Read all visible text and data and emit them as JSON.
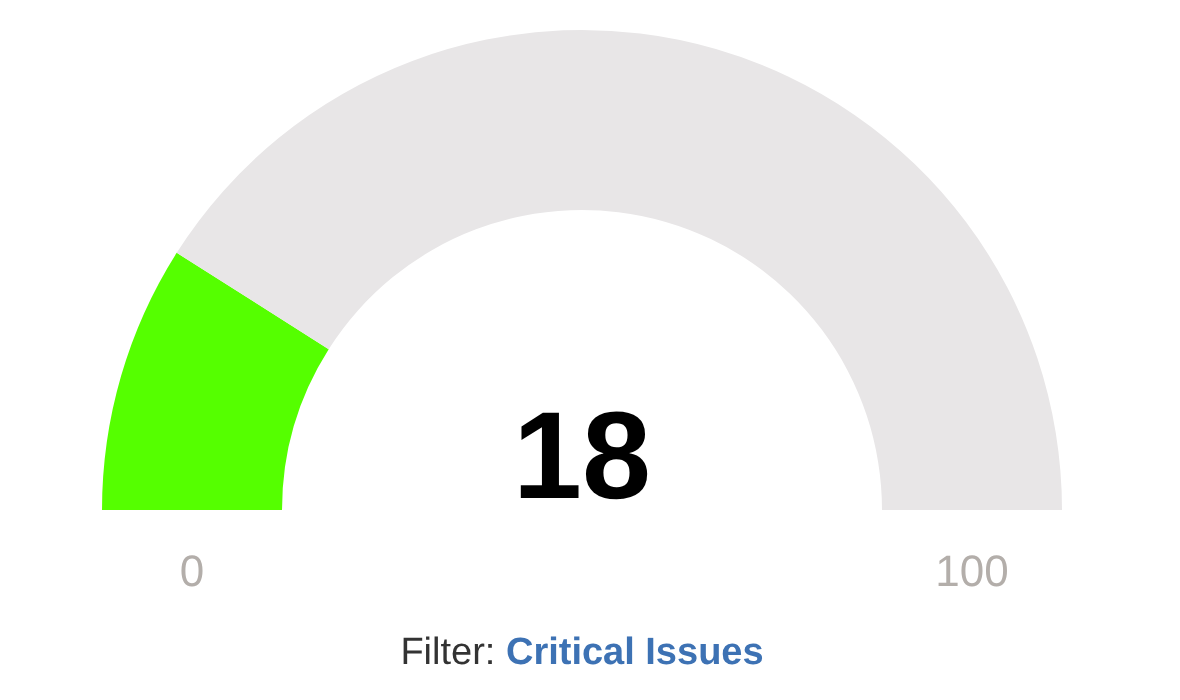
{
  "chart_data": {
    "type": "donut",
    "subtitle": "Filter: Critical Issues",
    "categories": [
      null,
      null
    ],
    "values": [
      18,
      82
    ],
    "colors": [
      "#55ff00",
      "#e8e6e7"
    ],
    "annotations": [
      "0",
      "100",
      "18"
    ]
  }
}
